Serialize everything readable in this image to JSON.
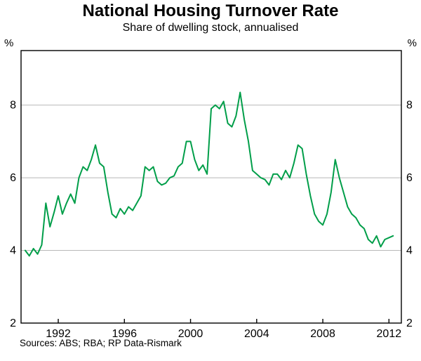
{
  "title": "National Housing Turnover Rate",
  "subtitle": "Share of dwelling stock, annualised",
  "source": "Sources: ABS; RBA; RP Data-Rismark",
  "axes": {
    "left_unit": "%",
    "right_unit": "%",
    "y_ticks": [
      8,
      6,
      4,
      2
    ],
    "x_ticks": [
      1992,
      1996,
      2000,
      2004,
      2008,
      2012
    ]
  },
  "chart_data": {
    "type": "line",
    "title": "National Housing Turnover Rate",
    "subtitle": "Share of dwelling stock, annualised",
    "ylabel": "%",
    "xlim": [
      1989.75,
      2012.75
    ],
    "ylim": [
      2,
      9.5
    ],
    "gridlines_y": [
      4,
      6,
      8
    ],
    "grid": true,
    "legend": "none",
    "colors": {
      "line": "#009e49",
      "grid": "#b8b8b8",
      "axis": "#000000",
      "text": "#000000"
    },
    "series": [
      {
        "name": "National housing turnover rate (% of dwelling stock, annualised)",
        "x_start": 1990.0,
        "x_step": 0.25,
        "values": [
          4.0,
          3.85,
          4.05,
          3.9,
          4.15,
          5.3,
          4.65,
          5.05,
          5.5,
          5.0,
          5.3,
          5.55,
          5.3,
          6.0,
          6.3,
          6.2,
          6.5,
          6.9,
          6.4,
          6.3,
          5.6,
          5.0,
          4.9,
          5.15,
          5.0,
          5.2,
          5.1,
          5.3,
          5.5,
          6.3,
          6.2,
          6.3,
          5.9,
          5.8,
          5.85,
          6.0,
          6.05,
          6.3,
          6.4,
          7.0,
          7.0,
          6.5,
          6.2,
          6.35,
          6.1,
          7.9,
          8.0,
          7.9,
          8.1,
          7.5,
          7.4,
          7.7,
          8.35,
          7.6,
          7.0,
          6.2,
          6.1,
          6.0,
          5.95,
          5.8,
          6.1,
          6.1,
          5.95,
          6.2,
          6.0,
          6.4,
          6.9,
          6.8,
          6.1,
          5.5,
          5.0,
          4.8,
          4.7,
          5.0,
          5.6,
          6.5,
          6.0,
          5.6,
          5.2,
          5.0,
          4.9,
          4.7,
          4.6,
          4.3,
          4.2,
          4.4,
          4.1,
          4.3,
          4.35,
          4.4
        ]
      }
    ]
  }
}
